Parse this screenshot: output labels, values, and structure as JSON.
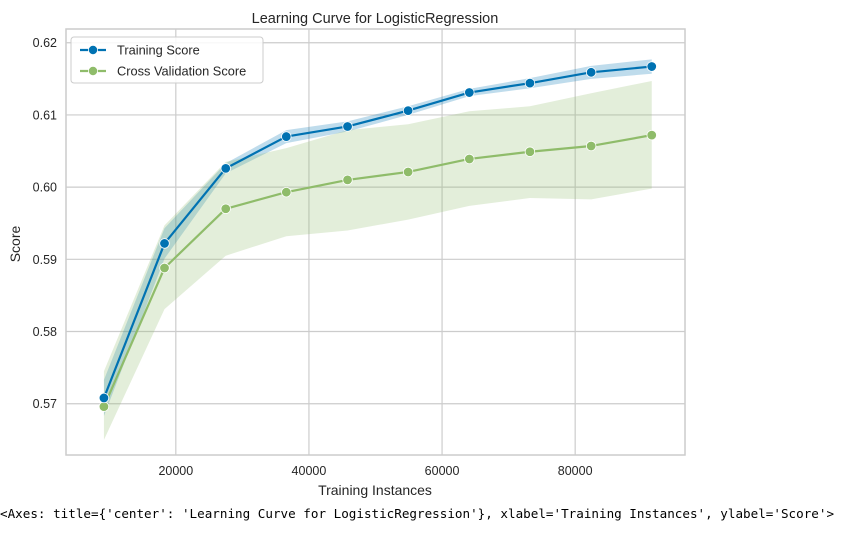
{
  "chart_data": {
    "type": "line",
    "title": "Learning Curve for LogisticRegression",
    "xlabel": "Training Instances",
    "ylabel": "Score",
    "xlim": [
      3500,
      96500
    ],
    "ylim": [
      0.5629,
      0.6219
    ],
    "x_ticks": [
      20000,
      40000,
      60000,
      80000
    ],
    "x_tick_labels": [
      "20000",
      "40000",
      "60000",
      "80000"
    ],
    "y_ticks": [
      0.57,
      0.58,
      0.59,
      0.6,
      0.61,
      0.62
    ],
    "y_tick_labels": [
      "0.57",
      "0.58",
      "0.59",
      "0.60",
      "0.61",
      "0.62"
    ],
    "grid": true,
    "legend": "top-left",
    "x": [
      9200,
      18300,
      27500,
      36600,
      45800,
      54900,
      64100,
      73200,
      82400,
      91500
    ],
    "series": [
      {
        "name": "Training Score",
        "color": "#0072b2",
        "values": [
          0.5708,
          0.5922,
          0.6026,
          0.607,
          0.6084,
          0.6106,
          0.6131,
          0.6144,
          0.6159,
          0.6167
        ],
        "band_upper": [
          0.5733,
          0.5943,
          0.6033,
          0.6079,
          0.6091,
          0.6112,
          0.6136,
          0.6151,
          0.6168,
          0.6177
        ],
        "band_lower": [
          0.5683,
          0.5901,
          0.6019,
          0.6061,
          0.6077,
          0.61,
          0.6126,
          0.6137,
          0.615,
          0.6157
        ]
      },
      {
        "name": "Cross Validation Score",
        "color": "#8fbc6a",
        "values": [
          0.5696,
          0.5888,
          0.597,
          0.5993,
          0.601,
          0.6021,
          0.6039,
          0.6049,
          0.6057,
          0.6072
        ],
        "band_upper": [
          0.5745,
          0.5947,
          0.6035,
          0.6054,
          0.6079,
          0.6087,
          0.6105,
          0.6112,
          0.613,
          0.6147
        ],
        "band_lower": [
          0.565,
          0.5831,
          0.5905,
          0.5932,
          0.594,
          0.5955,
          0.5974,
          0.5985,
          0.5983,
          0.5998
        ]
      }
    ]
  },
  "output_text": "<Axes: title={'center': 'Learning Curve for LogisticRegression'}, xlabel='Training Instances', ylabel='Score'>"
}
